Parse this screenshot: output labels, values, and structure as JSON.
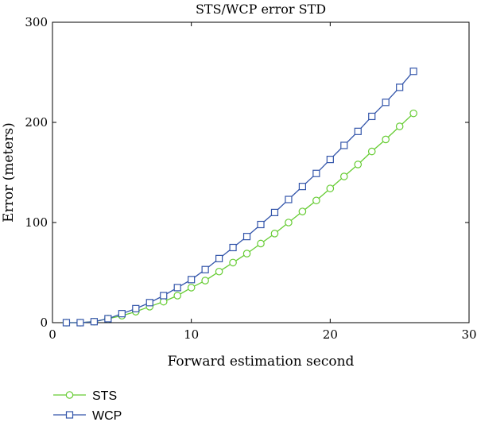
{
  "chart_data": {
    "type": "line",
    "title": "STS/WCP error STD",
    "xlabel": "Forward estimation second",
    "ylabel": "Error (meters)",
    "xlim": [
      0,
      30
    ],
    "ylim": [
      0,
      300
    ],
    "xticks": [
      0,
      10,
      20,
      30
    ],
    "yticks": [
      0,
      100,
      200,
      300
    ],
    "grid": false,
    "legend_position": "bottom-left, below plot",
    "x": [
      1,
      2,
      3,
      4,
      5,
      6,
      7,
      8,
      9,
      10,
      11,
      12,
      13,
      14,
      15,
      16,
      17,
      18,
      19,
      20,
      21,
      22,
      23,
      24,
      25,
      26
    ],
    "series": [
      {
        "name": "STS",
        "color": "#66cc33",
        "marker": "circle",
        "values": [
          0,
          0,
          1,
          4,
          7,
          11,
          16,
          21,
          27,
          35,
          42,
          51,
          60,
          69,
          79,
          89,
          100,
          111,
          122,
          134,
          146,
          158,
          171,
          183,
          196,
          209
        ]
      },
      {
        "name": "WCP",
        "color": "#3355aa",
        "marker": "square",
        "values": [
          0,
          0,
          1,
          4,
          9,
          14,
          20,
          27,
          35,
          43,
          53,
          64,
          75,
          86,
          98,
          110,
          123,
          136,
          149,
          163,
          177,
          191,
          206,
          220,
          235,
          251
        ]
      }
    ]
  }
}
